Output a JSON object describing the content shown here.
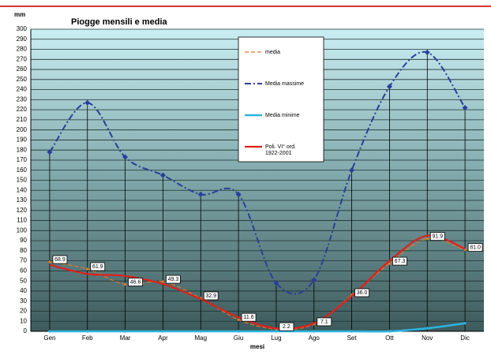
{
  "chart_data": {
    "type": "line",
    "title": "Piogge mensili e media",
    "y_label": "mm",
    "x_label": "mesi",
    "categories": [
      "Gen",
      "Feb",
      "Mar",
      "Apr",
      "Mag",
      "Giu",
      "Lug",
      "Ago",
      "Set",
      "Ott",
      "Nov",
      "Dic"
    ],
    "ylim": [
      0,
      300
    ],
    "yticks": [
      0,
      10,
      20,
      30,
      40,
      50,
      60,
      70,
      80,
      90,
      100,
      110,
      120,
      130,
      140,
      150,
      160,
      170,
      180,
      190,
      200,
      210,
      220,
      230,
      240,
      250,
      260,
      270,
      280,
      290,
      300
    ],
    "grid": true,
    "legend": "top-center",
    "series": [
      {
        "name": "media",
        "color": "#e87722",
        "values": [
          68.9,
          61.9,
          46.6,
          49.3,
          32.9,
          11.6,
          2.2,
          7.1,
          36.0,
          67.3,
          91.9,
          81.0
        ],
        "value_labels": [
          "68.9",
          "61.9",
          "46.6",
          "49.3",
          "32.9",
          "11.6",
          "2.2",
          "7.1",
          "36.0",
          "67.3",
          "91.9",
          "81.0"
        ]
      },
      {
        "name": "Media massime",
        "color": "#2a3f9a",
        "values": [
          178,
          227,
          173,
          155,
          136,
          136,
          48,
          51,
          160,
          243,
          277,
          222
        ]
      },
      {
        "name": "Media minime",
        "color": "#2bb4e0",
        "values": [
          0,
          0,
          0,
          0,
          0,
          0,
          0,
          0,
          0,
          0,
          3,
          8
        ]
      },
      {
        "name": "Poli. VI° ord. 1922-2001",
        "color": "#e0201b",
        "values": [
          66,
          57,
          55,
          47,
          32,
          14,
          3,
          8,
          35,
          70,
          95,
          82
        ]
      }
    ]
  }
}
